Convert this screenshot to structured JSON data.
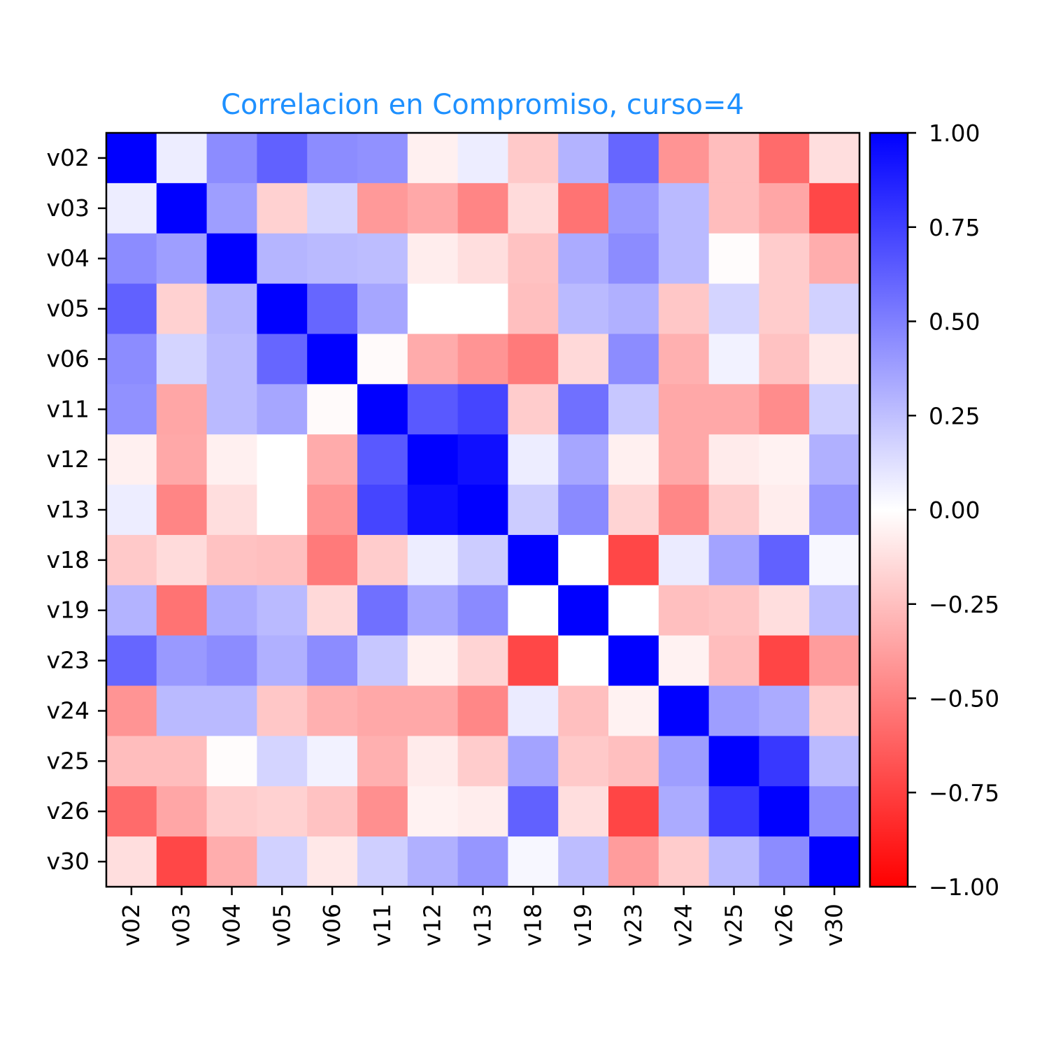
{
  "chart_data": {
    "type": "heatmap",
    "title": "Correlacion en Compromiso, curso=4",
    "title_color": "#1E90FF",
    "xlabel": "",
    "ylabel": "",
    "labels": [
      "v02",
      "v03",
      "v04",
      "v05",
      "v06",
      "v11",
      "v12",
      "v13",
      "v18",
      "v19",
      "v23",
      "v24",
      "v25",
      "v26",
      "v30"
    ],
    "values": [
      [
        1.0,
        0.07,
        0.45,
        0.62,
        0.45,
        0.43,
        -0.06,
        0.07,
        -0.21,
        0.3,
        0.6,
        -0.42,
        -0.26,
        -0.58,
        -0.13
      ],
      [
        0.07,
        1.0,
        0.38,
        -0.18,
        0.17,
        -0.4,
        -0.34,
        -0.48,
        -0.14,
        -0.55,
        0.4,
        0.27,
        -0.26,
        -0.35,
        -0.72
      ],
      [
        0.45,
        0.38,
        1.0,
        0.29,
        0.27,
        0.26,
        -0.07,
        -0.13,
        -0.24,
        0.33,
        0.45,
        0.27,
        -0.01,
        -0.2,
        -0.32
      ],
      [
        0.62,
        -0.18,
        0.29,
        1.0,
        0.6,
        0.35,
        0.0,
        0.0,
        -0.25,
        0.27,
        0.31,
        -0.22,
        0.17,
        -0.2,
        0.18
      ],
      [
        0.45,
        0.17,
        0.27,
        0.6,
        1.0,
        -0.02,
        -0.33,
        -0.42,
        -0.52,
        -0.15,
        0.45,
        -0.31,
        0.05,
        -0.24,
        -0.09
      ],
      [
        0.43,
        -0.35,
        0.27,
        0.35,
        -0.02,
        1.0,
        0.65,
        0.73,
        -0.2,
        0.56,
        0.22,
        -0.34,
        -0.34,
        -0.45,
        0.19
      ],
      [
        -0.06,
        -0.34,
        -0.06,
        0.0,
        -0.33,
        0.65,
        1.0,
        0.94,
        0.07,
        0.35,
        -0.06,
        -0.34,
        -0.08,
        -0.05,
        0.31
      ],
      [
        0.07,
        -0.48,
        -0.13,
        0.0,
        -0.42,
        0.73,
        0.94,
        1.0,
        0.2,
        0.46,
        -0.17,
        -0.47,
        -0.2,
        -0.07,
        0.41
      ],
      [
        -0.21,
        -0.14,
        -0.24,
        -0.25,
        -0.52,
        -0.2,
        0.07,
        0.2,
        1.0,
        0.0,
        -0.72,
        0.08,
        0.36,
        0.62,
        0.03
      ],
      [
        0.3,
        -0.55,
        0.33,
        0.27,
        -0.15,
        0.56,
        0.35,
        0.46,
        0.0,
        1.0,
        0.0,
        -0.25,
        -0.23,
        -0.13,
        0.26
      ],
      [
        0.6,
        0.4,
        0.45,
        0.31,
        0.45,
        0.22,
        -0.06,
        -0.17,
        -0.72,
        0.0,
        1.0,
        -0.05,
        -0.26,
        -0.73,
        -0.39
      ],
      [
        -0.42,
        0.27,
        0.27,
        -0.22,
        -0.31,
        -0.34,
        -0.34,
        -0.47,
        0.08,
        -0.25,
        -0.05,
        1.0,
        0.38,
        0.33,
        -0.2
      ],
      [
        -0.26,
        -0.26,
        -0.01,
        0.17,
        0.05,
        -0.31,
        -0.08,
        -0.2,
        0.36,
        -0.21,
        -0.25,
        0.38,
        1.0,
        0.78,
        0.27
      ],
      [
        -0.58,
        -0.35,
        -0.2,
        -0.18,
        -0.24,
        -0.44,
        -0.05,
        -0.07,
        0.62,
        -0.13,
        -0.73,
        0.33,
        0.78,
        1.0,
        0.45
      ],
      [
        -0.13,
        -0.72,
        -0.32,
        0.18,
        -0.09,
        0.19,
        0.31,
        0.41,
        0.03,
        0.26,
        -0.39,
        -0.2,
        0.27,
        0.45,
        1.0
      ]
    ],
    "vmin": -1.0,
    "vmax": 1.0,
    "colormap": "bwr_r",
    "colorbar": {
      "ticks": [
        1.0,
        0.75,
        0.5,
        0.25,
        0.0,
        -0.25,
        -0.5,
        -0.75,
        -1.0
      ],
      "tick_labels": [
        "1.00",
        "0.75",
        "0.50",
        "0.25",
        "0.00",
        "−0.25",
        "−0.50",
        "−0.75",
        "−1.00"
      ],
      "position": "right"
    },
    "grid": false
  }
}
